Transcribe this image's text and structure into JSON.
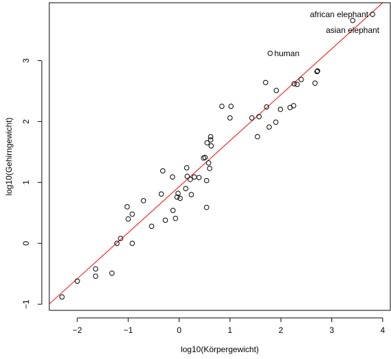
{
  "chart_data": {
    "type": "scatter",
    "xlabel": "log10(Körpergewicht)",
    "ylabel": "log10(Gehirngewicht)",
    "xlim": [
      -2.55,
      4.15
    ],
    "ylim": [
      -1.1,
      3.95
    ],
    "xticks": [
      -2,
      -1,
      0,
      1,
      2,
      3,
      4
    ],
    "yticks": [
      -1,
      0,
      1,
      2,
      3
    ],
    "xtick_labels": [
      "−2",
      "−1",
      "0",
      "1",
      "2",
      "3",
      "4"
    ],
    "ytick_labels": [
      "−1",
      "0",
      "1",
      "2",
      "3"
    ],
    "point_color": "#000000",
    "line_color": "#ff0000",
    "regression_line": {
      "intercept": 0.93,
      "slope": 0.755
    },
    "points": [
      [
        -2.3,
        -0.88
      ],
      [
        -2.0,
        -0.62
      ],
      [
        -1.64,
        -0.42
      ],
      [
        -1.64,
        -0.54
      ],
      [
        -1.32,
        -0.49
      ],
      [
        -1.22,
        0.0
      ],
      [
        -1.15,
        0.08
      ],
      [
        -1.02,
        0.6
      ],
      [
        -1.0,
        0.4
      ],
      [
        -0.92,
        0.48
      ],
      [
        -0.92,
        -0.0
      ],
      [
        -0.7,
        0.7
      ],
      [
        -0.54,
        0.28
      ],
      [
        -0.35,
        0.81
      ],
      [
        -0.32,
        1.19
      ],
      [
        -0.27,
        0.38
      ],
      [
        -0.13,
        1.09
      ],
      [
        -0.12,
        0.54
      ],
      [
        -0.07,
        0.41
      ],
      [
        -0.04,
        0.76
      ],
      [
        -0.02,
        0.82
      ],
      [
        0.02,
        0.74
      ],
      [
        0.13,
        0.9
      ],
      [
        0.15,
        1.24
      ],
      [
        0.16,
        1.1
      ],
      [
        0.22,
        1.05
      ],
      [
        0.24,
        0.8
      ],
      [
        0.3,
        1.09
      ],
      [
        0.39,
        1.08
      ],
      [
        0.48,
        1.4
      ],
      [
        0.51,
        1.41
      ],
      [
        0.54,
        0.59
      ],
      [
        0.54,
        1.03
      ],
      [
        0.55,
        1.65
      ],
      [
        0.58,
        1.32
      ],
      [
        0.6,
        1.23
      ],
      [
        0.62,
        1.7
      ],
      [
        0.62,
        1.75
      ],
      [
        0.63,
        1.6
      ],
      [
        0.84,
        2.25
      ],
      [
        1.0,
        2.06
      ],
      [
        1.02,
        2.25
      ],
      [
        1.43,
        2.06
      ],
      [
        1.54,
        1.75
      ],
      [
        1.57,
        2.08
      ],
      [
        1.7,
        2.64
      ],
      [
        1.72,
        2.24
      ],
      [
        1.77,
        1.91
      ],
      [
        1.9,
        1.99
      ],
      [
        1.91,
        2.51
      ],
      [
        1.99,
        2.2
      ],
      [
        2.18,
        2.23
      ],
      [
        2.25,
        2.26
      ],
      [
        2.26,
        2.62
      ],
      [
        2.32,
        2.61
      ],
      [
        2.4,
        2.69
      ],
      [
        2.67,
        2.63
      ],
      [
        2.71,
        2.82
      ],
      [
        2.72,
        2.83
      ],
      [
        1.79,
        3.12
      ],
      [
        3.41,
        3.66
      ],
      [
        3.8,
        3.76
      ]
    ],
    "annotations": [
      {
        "text": "african elephant",
        "x": 3.8,
        "y": 3.76,
        "pos": "left"
      },
      {
        "text": "asian elephant",
        "x": 3.41,
        "y": 3.66,
        "pos": "below"
      },
      {
        "text": "human",
        "x": 1.79,
        "y": 3.12,
        "pos": "right"
      }
    ]
  }
}
